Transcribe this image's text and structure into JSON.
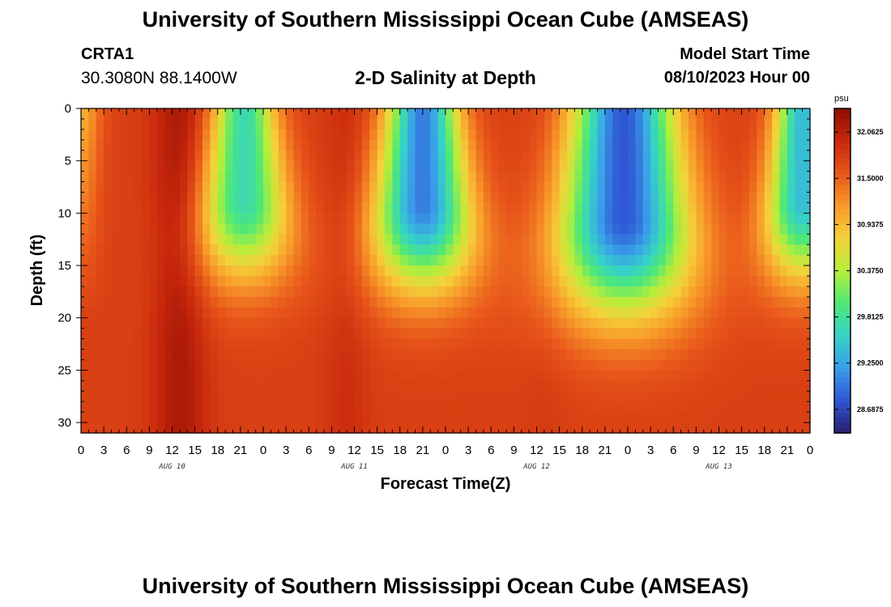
{
  "header": {
    "title_top": "University of Southern Mississippi Ocean Cube (AMSEAS)",
    "title_bottom": "University of Southern Mississippi Ocean Cube (AMSEAS)",
    "station_id": "CRTA1",
    "station_coords": "30.3080N  88.1400W",
    "plot_title": "2-D Salinity at Depth",
    "start_label": "Model Start Time",
    "start_value": "08/10/2023 Hour 00"
  },
  "chart_data": {
    "type": "heatmap",
    "title": "2-D Salinity at Depth",
    "xlabel": "Forecast Time(Z)",
    "ylabel": "Depth (ft)",
    "xlim": [
      0,
      96
    ],
    "ylim": [
      0,
      31
    ],
    "x_tick_step_hours": 3,
    "x_tick_labels": [
      "0",
      "3",
      "6",
      "9",
      "12",
      "15",
      "18",
      "21",
      "0",
      "3",
      "6",
      "9",
      "12",
      "15",
      "18",
      "21",
      "0",
      "3",
      "6",
      "9",
      "12",
      "15",
      "18",
      "21",
      "0",
      "3",
      "6",
      "9",
      "12",
      "15",
      "18",
      "21",
      "0"
    ],
    "day_labels": [
      {
        "hour": 12,
        "label": "AUG 10"
      },
      {
        "hour": 36,
        "label": "AUG 11"
      },
      {
        "hour": 60,
        "label": "AUG 12"
      },
      {
        "hour": 84,
        "label": "AUG 13"
      }
    ],
    "y_ticks": [
      0,
      5,
      10,
      15,
      20,
      25,
      30
    ],
    "y_tick_labels": [
      "0",
      "5",
      "10",
      "15",
      "20",
      "25",
      "30"
    ],
    "colorbar": {
      "unit": "psu",
      "min": 28.4,
      "max": 32.35,
      "tick_values": [
        32.0625,
        31.5,
        30.9375,
        30.375,
        29.8125,
        29.25,
        28.6875
      ],
      "tick_labels": [
        "32.0625",
        "31.5000",
        "30.9375",
        "30.3750",
        "29.8125",
        "29.2500",
        "28.6875"
      ],
      "colors": [
        "#2a1e6e",
        "#2f55d4",
        "#3a9ee8",
        "#35d2c8",
        "#4fe876",
        "#b5ee3a",
        "#f4d23a",
        "#f89a2a",
        "#e8561a",
        "#c8280c",
        "#8c0c02"
      ]
    },
    "field_model": {
      "background_psu": 31.75,
      "surface_start_psu": 31.0,
      "fresh_events": [
        {
          "center_hour": 21.5,
          "min_psu": 29.7,
          "half_width_surface_h": 4.0,
          "half_width_bottom_h": 7.5,
          "depth_extent_ft": 19
        },
        {
          "center_hour": 45.0,
          "min_psu": 29.0,
          "half_width_surface_h": 4.5,
          "half_width_bottom_h": 8.0,
          "depth_extent_ft": 20
        },
        {
          "center_hour": 71.5,
          "min_psu": 28.8,
          "half_width_surface_h": 6.5,
          "half_width_bottom_h": 10.5,
          "depth_extent_ft": 23
        },
        {
          "center_hour": 95.0,
          "min_psu": 29.4,
          "half_width_surface_h": 3.5,
          "half_width_bottom_h": 6.0,
          "depth_extent_ft": 19
        }
      ],
      "saline_bands": [
        {
          "center_hour": 13.0,
          "max_psu": 32.15,
          "half_width_h": 3.5
        },
        {
          "center_hour": 35.0,
          "max_psu": 31.9,
          "half_width_h": 3.0
        },
        {
          "center_hour": 61.0,
          "max_psu": 31.8,
          "half_width_h": 3.0
        }
      ]
    }
  }
}
